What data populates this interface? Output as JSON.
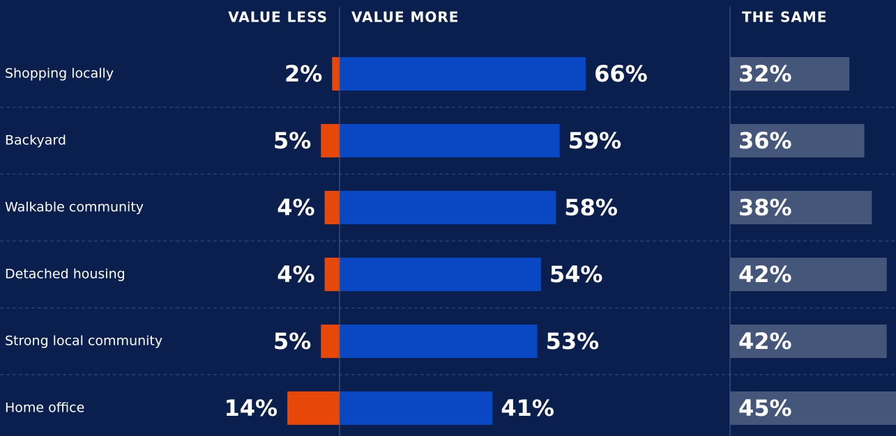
{
  "chart_data": {
    "type": "diverging-bar",
    "categories": [
      "Shopping locally",
      "Backyard",
      "Walkable community",
      "Detached housing",
      "Strong local community",
      "Home office"
    ],
    "series": [
      {
        "name": "VALUE LESS",
        "color": "#e8470a",
        "values": [
          2,
          5,
          4,
          4,
          5,
          14
        ],
        "value_labels": [
          "2%",
          "5%",
          "4%",
          "4%",
          "5%",
          "14%"
        ]
      },
      {
        "name": "VALUE MORE",
        "color": "#0a47c2",
        "values": [
          66,
          59,
          58,
          54,
          53,
          41
        ],
        "value_labels": [
          "66%",
          "59%",
          "58%",
          "54%",
          "53%",
          "41%"
        ]
      },
      {
        "name": "THE SAME",
        "color": "#44577a",
        "values": [
          32,
          36,
          38,
          42,
          42,
          45
        ],
        "value_labels": [
          "32%",
          "36%",
          "38%",
          "42%",
          "42%",
          "45%"
        ]
      }
    ]
  }
}
